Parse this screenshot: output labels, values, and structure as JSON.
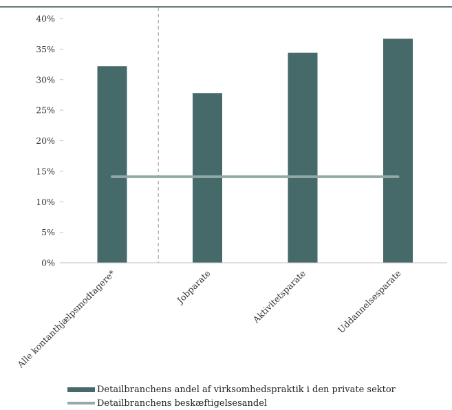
{
  "chart_data": {
    "type": "bar",
    "title": "",
    "xlabel": "",
    "ylabel": "",
    "categories": [
      "Alle kontanthjælpsmodtagere*",
      "Jobparate",
      "Aktivitetsparate",
      "Uddannelsesparate"
    ],
    "series": [
      {
        "name": "Detailbranchens andel af virksomhedspraktik i den private sektor",
        "type": "bar",
        "values": [
          32.2,
          27.8,
          34.4,
          36.7
        ],
        "color": "#46696a"
      },
      {
        "name": "Detailbranchens beskæftigelsesandel",
        "type": "line",
        "values": [
          14.1,
          14.1,
          14.1,
          14.1
        ],
        "color": "#93aaa7"
      }
    ],
    "y_ticks": [
      "0%",
      "5%",
      "10%",
      "15%",
      "20%",
      "25%",
      "30%",
      "35%",
      "40%"
    ],
    "ylim": [
      0,
      40
    ],
    "grid": false,
    "legend_position": "bottom",
    "separator": "dashed vertical line after first category"
  }
}
